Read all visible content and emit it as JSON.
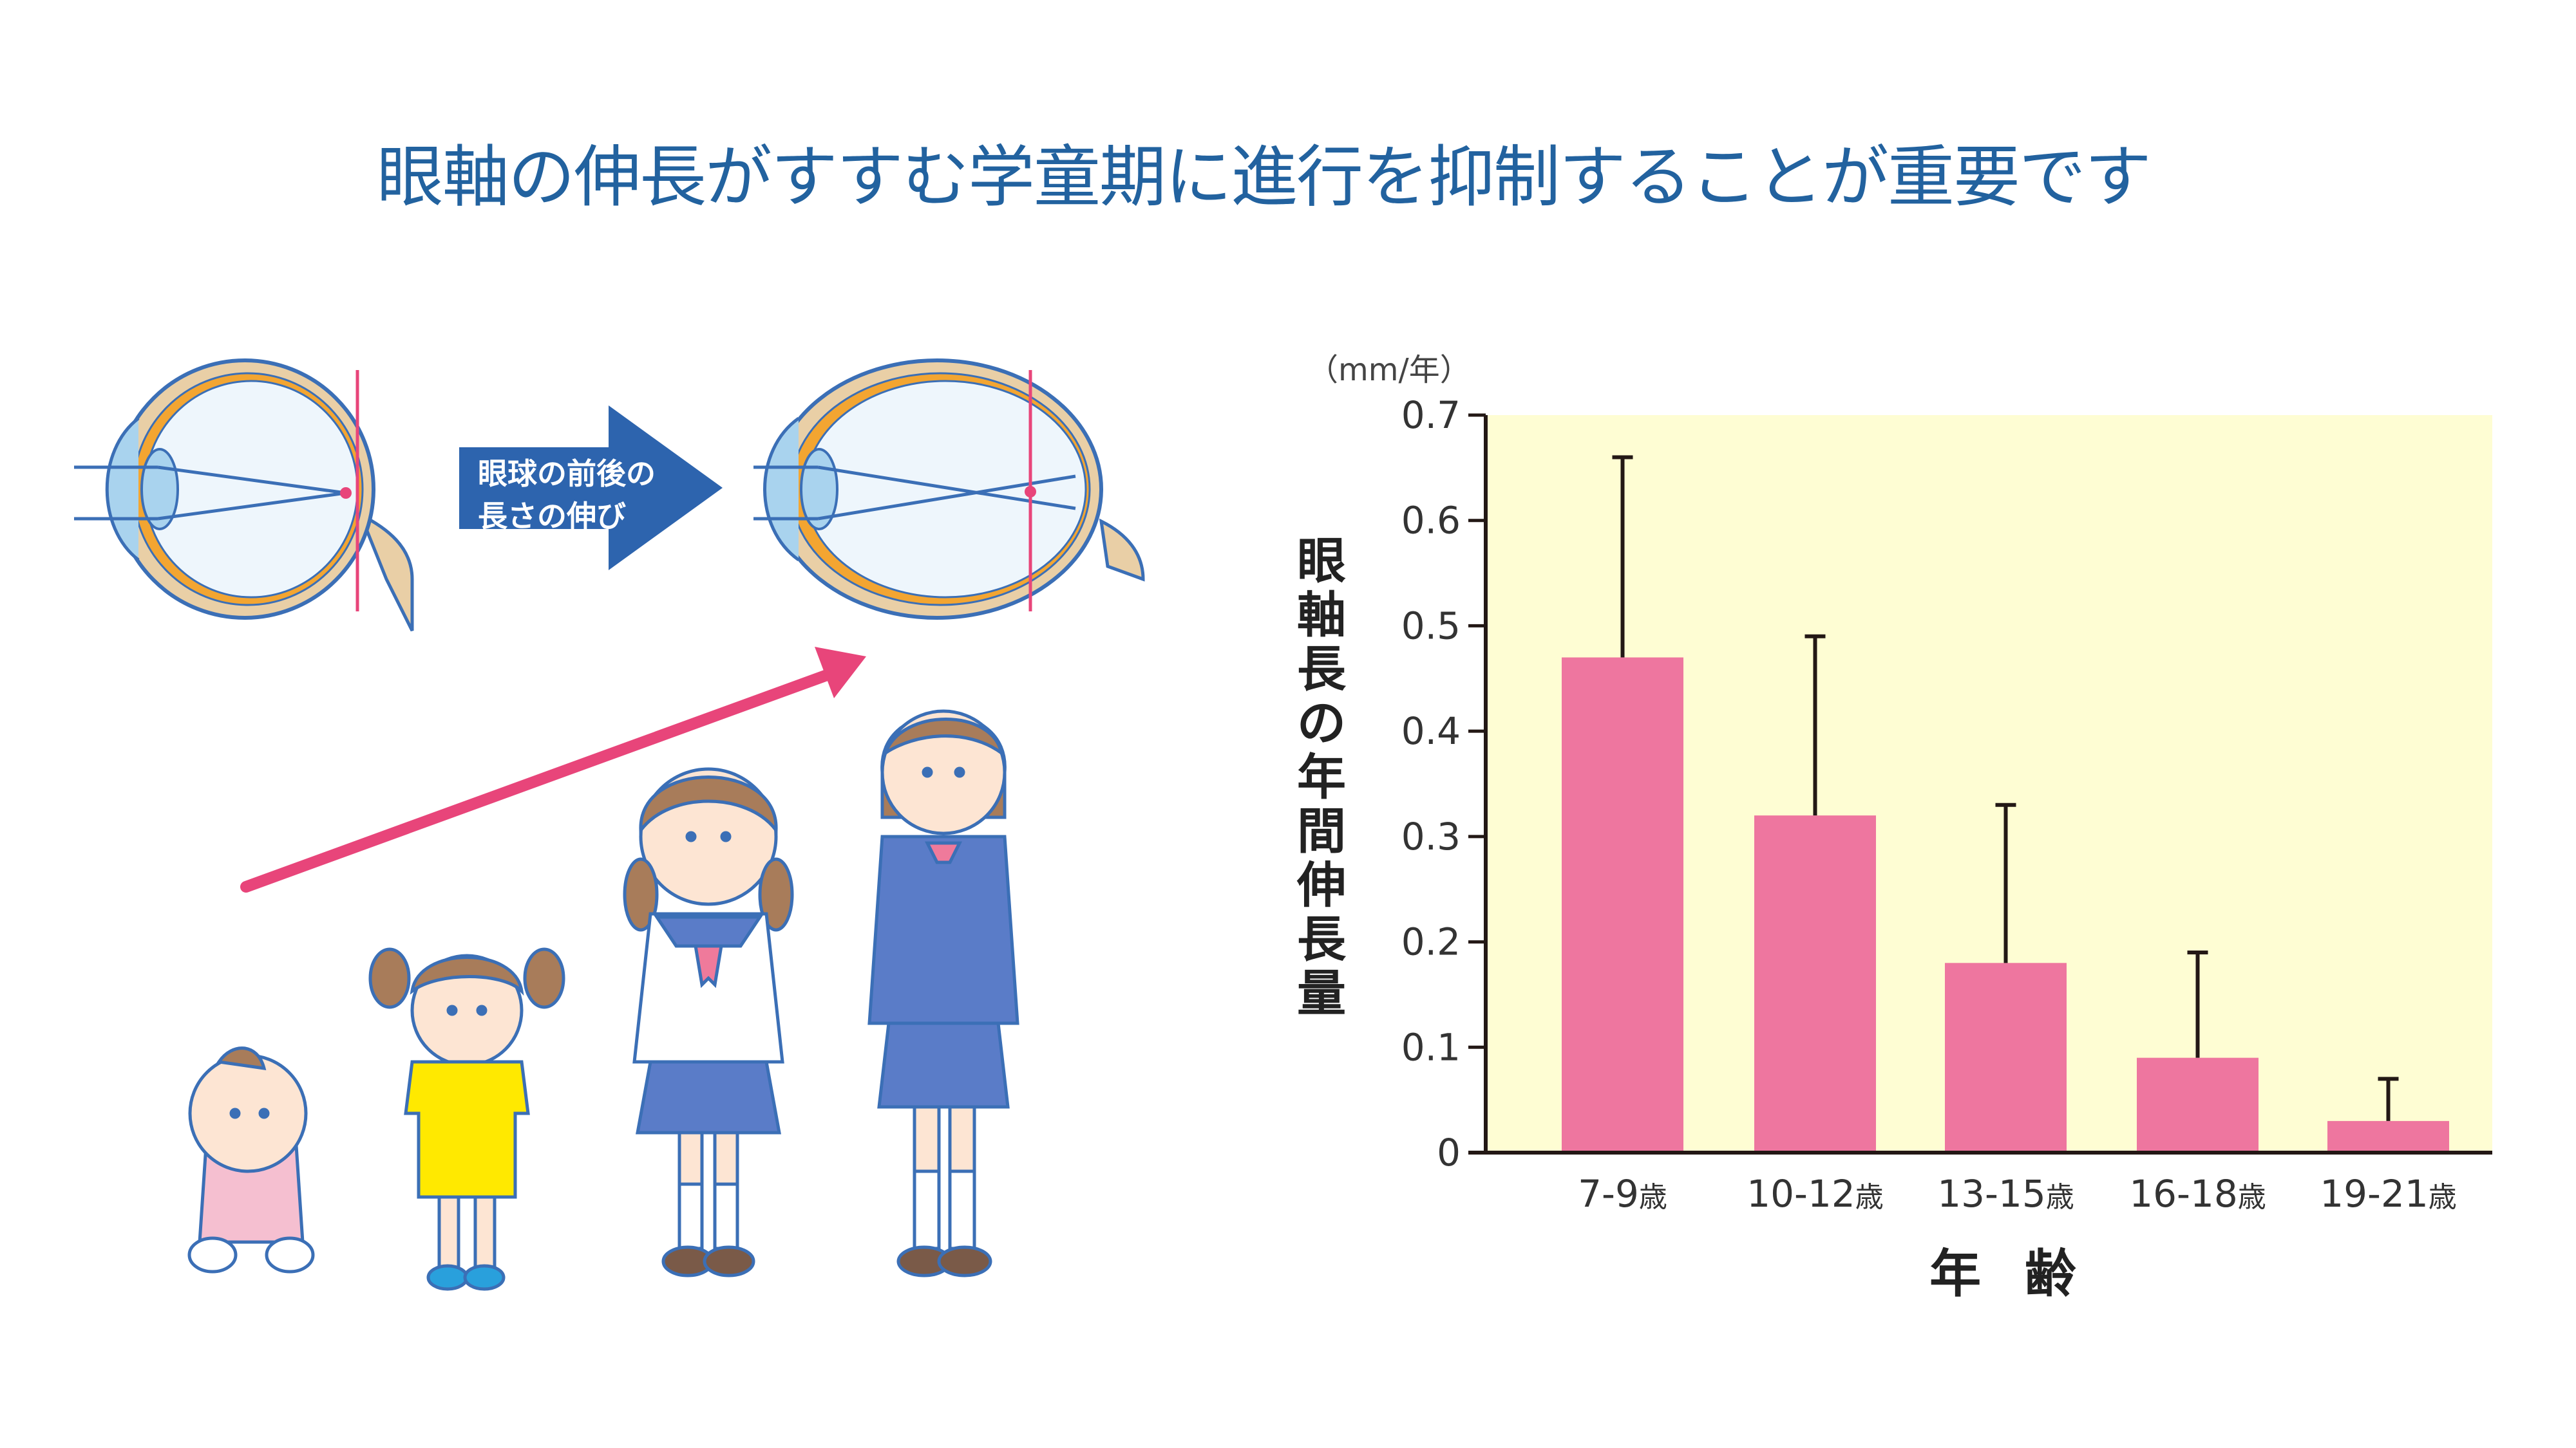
{
  "title": "眼軸の伸長がすすむ学童期に進行を抑制することが重要です",
  "illustration": {
    "arrow_label_line1": "眼球の前後の",
    "arrow_label_line2": "長さの伸び",
    "left_eye": "normal-eye-cross-section",
    "right_eye": "elongated-eye-cross-section",
    "figures": [
      "baby",
      "toddler-yellow-dress",
      "elementary-girl-sailor-uniform",
      "student-blazer-uniform"
    ],
    "growth_arrow_color": "#e8457a"
  },
  "chart": {
    "unit_label": "（mm/年）",
    "ylabel": "眼軸長の年間伸長量",
    "xlabel": "年 齢",
    "y_ticks": [
      "0",
      "0.1",
      "0.2",
      "0.3",
      "0.4",
      "0.5",
      "0.6",
      "0.7"
    ],
    "categories": [
      {
        "range": "7-9",
        "suffix": "歳"
      },
      {
        "range": "10-12",
        "suffix": "歳"
      },
      {
        "range": "13-15",
        "suffix": "歳"
      },
      {
        "range": "16-18",
        "suffix": "歳"
      },
      {
        "range": "19-21",
        "suffix": "歳"
      }
    ],
    "colors": {
      "bar": "#ee769f",
      "plot_bg": "#fefdd3",
      "axis": "#231815",
      "title": "#22629f"
    }
  },
  "chart_data": {
    "type": "bar",
    "title": "眼軸の伸長がすすむ学童期に進行を抑制することが重要です",
    "categories": [
      "7-9歳",
      "10-12歳",
      "13-15歳",
      "16-18歳",
      "19-21歳"
    ],
    "values": [
      0.47,
      0.32,
      0.18,
      0.09,
      0.03
    ],
    "error_upper": [
      0.66,
      0.49,
      0.33,
      0.19,
      0.07
    ],
    "xlabel": "年齢",
    "ylabel": "眼軸長の年間伸長量（mm/年）",
    "ylim": [
      0,
      0.7
    ],
    "yticks": [
      0,
      0.1,
      0.2,
      0.3,
      0.4,
      0.5,
      0.6,
      0.7
    ],
    "grid": false,
    "legend": null
  }
}
